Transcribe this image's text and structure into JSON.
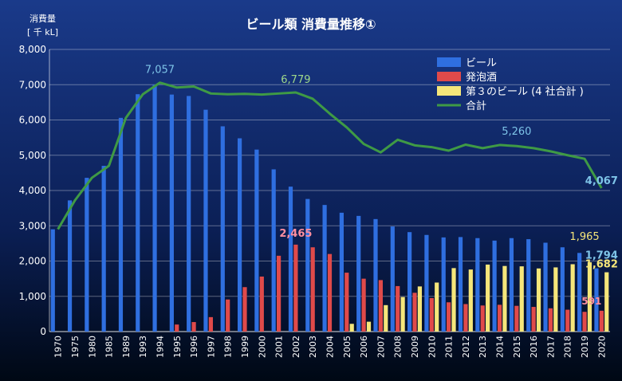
{
  "chart_data": {
    "type": "bar",
    "title": "ビール類 消費量推移①",
    "ylabel_line1": "消費量",
    "ylabel_line2": "[ 千 kL]",
    "ylim": [
      0,
      8000
    ],
    "yticks": [
      "0",
      "1,000",
      "2,000",
      "3,000",
      "4,000",
      "5,000",
      "6,000",
      "7,000",
      "8,000"
    ],
    "grid": true,
    "legend_position": "top-right",
    "categories": [
      "1970",
      "1975",
      "1980",
      "1985",
      "1989",
      "1993",
      "1994",
      "1995",
      "1996",
      "1997",
      "1998",
      "1999",
      "2000",
      "2001",
      "2002",
      "2003",
      "2004",
      "2005",
      "2006",
      "2007",
      "2008",
      "2009",
      "2010",
      "2011",
      "2012",
      "2013",
      "2014",
      "2015",
      "2016",
      "2017",
      "2018",
      "2019",
      "2020"
    ],
    "series": [
      {
        "name": "ビール",
        "type": "bar",
        "color": "#2f6fe0",
        "values": [
          2900,
          3720,
          4360,
          4700,
          6060,
          6730,
          7000,
          6720,
          6680,
          6290,
          5820,
          5480,
          5160,
          4600,
          4110,
          3760,
          3590,
          3370,
          3280,
          3190,
          2980,
          2820,
          2740,
          2670,
          2680,
          2650,
          2580,
          2650,
          2620,
          2520,
          2390,
          2230,
          1794
        ]
      },
      {
        "name": "発泡酒",
        "type": "bar",
        "color": "#e04a4a",
        "values": [
          0,
          0,
          0,
          0,
          0,
          0,
          0,
          200,
          270,
          410,
          910,
          1260,
          1560,
          2150,
          2465,
          2390,
          2200,
          1670,
          1500,
          1460,
          1290,
          1100,
          950,
          830,
          780,
          740,
          760,
          730,
          700,
          660,
          620,
          560,
          591
        ]
      },
      {
        "name": "第３のビール (4 社合計 )",
        "type": "bar",
        "color": "#f5e67a",
        "values": [
          0,
          0,
          0,
          0,
          0,
          0,
          0,
          0,
          0,
          0,
          0,
          0,
          0,
          0,
          0,
          0,
          0,
          220,
          280,
          750,
          980,
          1280,
          1390,
          1800,
          1760,
          1900,
          1860,
          1850,
          1790,
          1820,
          1910,
          1965,
          1682
        ]
      },
      {
        "name": "合計",
        "type": "line",
        "color": "#3f9a45",
        "values": [
          2900,
          3720,
          4360,
          4700,
          6060,
          6730,
          7057,
          6920,
          6950,
          6750,
          6730,
          6740,
          6720,
          6750,
          6779,
          6600,
          6180,
          5790,
          5320,
          5080,
          5440,
          5280,
          5230,
          5130,
          5300,
          5200,
          5290,
          5260,
          5200,
          5110,
          5000,
          4900,
          4067
        ]
      }
    ],
    "annotations": [
      {
        "text": "7,057",
        "color": "#7ec4e8"
      },
      {
        "text": "6,779",
        "color": "#9fd88a"
      },
      {
        "text": "5,260",
        "color": "#7ec4e8"
      },
      {
        "text": "4,067",
        "color": "#7ec4e8"
      },
      {
        "text": "2,465",
        "color": "#ff8fa0"
      },
      {
        "text": "1,965",
        "color": "#f5e67a"
      },
      {
        "text": "1,794",
        "color": "#7ec4e8"
      },
      {
        "text": "1,682",
        "color": "#f5e67a"
      },
      {
        "text": "591",
        "color": "#ff8fa0"
      }
    ]
  }
}
